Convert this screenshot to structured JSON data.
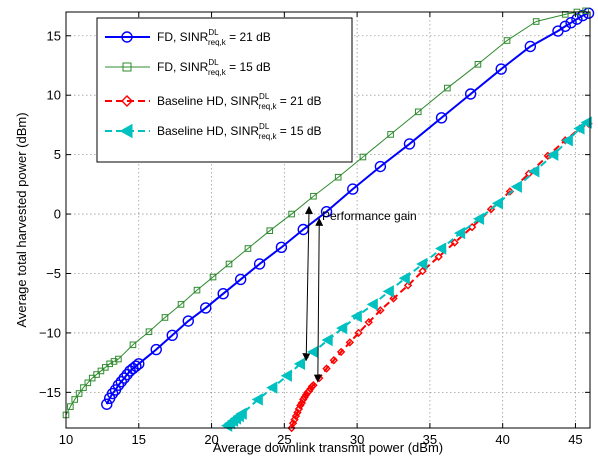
{
  "chart_data": {
    "type": "line",
    "title": "",
    "xlabel": "Average downlink transmit power (dBm)",
    "ylabel": "Average total harvested power (dBm)",
    "xlim": [
      10,
      46
    ],
    "ylim": [
      -18,
      17
    ],
    "x_ticks": [
      10,
      15,
      20,
      25,
      30,
      35,
      40,
      45
    ],
    "y_ticks": [
      -15,
      -10,
      -5,
      0,
      5,
      10,
      15
    ],
    "grid": true,
    "legend_position": "top-left",
    "series": [
      {
        "name_main": "FD, SINR",
        "name_sup": "DL",
        "name_sub": "req,k",
        "name_tail": " = 21 dB",
        "color": "#0000ff",
        "line_style": "solid",
        "line_width": 2,
        "marker": "circle",
        "legend_marker_size": 5,
        "x": [
          12.8,
          13.0,
          13.2,
          13.4,
          13.6,
          13.8,
          14.0,
          14.2,
          14.4,
          14.6,
          14.8,
          15.0,
          16.2,
          17.3,
          18.4,
          19.6,
          20.8,
          22.0,
          23.3,
          24.8,
          26.3,
          27.9,
          29.7,
          31.6,
          33.6,
          35.8,
          37.8,
          39.9,
          41.9,
          43.8,
          44.3,
          44.7,
          45.1,
          45.5,
          45.9
        ],
        "y": [
          -16.0,
          -15.5,
          -15.1,
          -14.8,
          -14.4,
          -14.1,
          -13.8,
          -13.5,
          -13.2,
          -13.0,
          -12.8,
          -12.6,
          -11.4,
          -10.2,
          -9.0,
          -7.9,
          -6.7,
          -5.5,
          -4.2,
          -2.8,
          -1.3,
          0.2,
          2.1,
          4.0,
          5.9,
          8.1,
          10.1,
          12.2,
          14.1,
          15.4,
          15.8,
          16.1,
          16.4,
          16.7,
          16.9
        ]
      },
      {
        "name_main": "FD, SINR",
        "name_sup": "DL",
        "name_sub": "req,k",
        "name_tail": " = 15 dB",
        "color": "#2e8b2e",
        "line_style": "solid",
        "line_width": 1,
        "marker": "square",
        "legend_marker_size": 4,
        "x": [
          10.0,
          10.3,
          10.6,
          10.9,
          11.2,
          11.5,
          11.8,
          12.1,
          12.4,
          12.7,
          13.0,
          13.3,
          13.6,
          14.6,
          15.7,
          16.8,
          17.9,
          19.0,
          20.1,
          21.2,
          22.5,
          24.0,
          25.5,
          27.0,
          28.7,
          30.4,
          32.3,
          34.2,
          36.2,
          38.3,
          40.3,
          42.3,
          44.3,
          45.1,
          45.7
        ],
        "y": [
          -16.9,
          -16.2,
          -15.6,
          -15.1,
          -14.6,
          -14.2,
          -13.8,
          -13.5,
          -13.2,
          -12.9,
          -12.6,
          -12.4,
          -12.2,
          -11.0,
          -9.9,
          -8.7,
          -7.6,
          -6.4,
          -5.3,
          -4.2,
          -2.9,
          -1.4,
          0.0,
          1.5,
          3.1,
          4.8,
          6.7,
          8.6,
          10.6,
          12.6,
          14.6,
          16.2,
          16.8,
          17.0,
          17.1
        ]
      },
      {
        "name_main": "Baseline HD, SINR",
        "name_sup": "DL",
        "name_sub": "req,k",
        "name_tail": " = 21 dB",
        "color": "#ff0000",
        "line_style": "dashed",
        "line_width": 2,
        "marker": "diamond",
        "legend_marker_size": 5,
        "x": [
          25.5,
          25.6,
          25.7,
          25.8,
          25.9,
          26.0,
          26.1,
          26.2,
          26.3,
          26.4,
          26.5,
          26.6,
          26.7,
          26.8,
          26.9,
          27.0,
          27.4,
          27.9,
          28.4,
          28.9,
          29.5,
          30.1,
          30.8,
          31.6,
          32.5,
          33.5,
          34.5,
          35.6,
          36.7,
          37.9,
          39.2,
          40.5,
          41.8,
          43.1,
          44.3,
          45.3,
          45.9
        ],
        "y": [
          -18.0,
          -17.6,
          -17.3,
          -17.0,
          -16.7,
          -16.4,
          -16.1,
          -15.9,
          -15.6,
          -15.4,
          -15.2,
          -15.0,
          -14.9,
          -14.7,
          -14.5,
          -14.4,
          -13.8,
          -13.0,
          -12.3,
          -11.6,
          -10.8,
          -10.0,
          -9.1,
          -8.1,
          -7.1,
          -6.0,
          -4.8,
          -3.6,
          -2.4,
          -1.1,
          0.4,
          1.9,
          3.4,
          4.9,
          6.2,
          7.2,
          7.6
        ]
      },
      {
        "name_main": "Baseline HD, SINR",
        "name_sup": "DL",
        "name_sub": "req,k",
        "name_tail": " = 15 dB",
        "color": "#00c0c0",
        "line_style": "dashed",
        "line_width": 2,
        "marker": "triangle-left",
        "legend_marker_size": 6,
        "x": [
          21.1,
          21.3,
          21.5,
          21.7,
          21.9,
          22.1,
          23.2,
          24.2,
          25.2,
          26.1,
          27.0,
          28.0,
          29.0,
          30.0,
          31.1,
          32.2,
          33.3,
          34.5,
          35.8,
          37.1,
          38.4,
          39.7,
          41.0,
          42.2,
          43.5,
          44.5,
          45.3,
          45.8
        ],
        "y": [
          -17.8,
          -17.6,
          -17.4,
          -17.2,
          -17.0,
          -16.8,
          -15.6,
          -14.6,
          -13.6,
          -12.6,
          -11.6,
          -10.6,
          -9.6,
          -8.6,
          -7.6,
          -6.5,
          -5.4,
          -4.2,
          -2.9,
          -1.6,
          -0.4,
          0.9,
          2.3,
          3.6,
          5.0,
          6.2,
          7.2,
          7.7
        ]
      }
    ],
    "annotations": [
      {
        "text": "Performance gain"
      }
    ]
  }
}
